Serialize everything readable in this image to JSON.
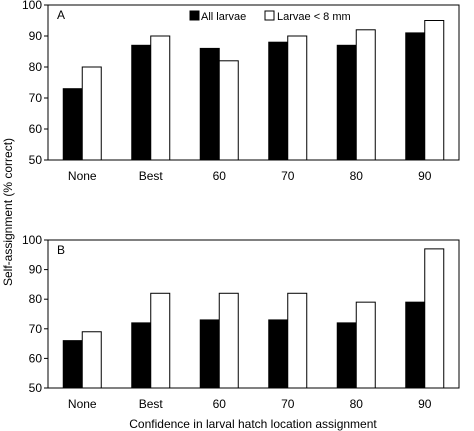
{
  "legend": {
    "series_all": "All larvae",
    "series_small": "Larvae < 8 mm"
  },
  "ylabel": "Self-assignment (% correct)",
  "xlabel": "Confidence in larval hatch location assignment",
  "chart_data": [
    {
      "panel": "A",
      "type": "bar",
      "categories": [
        "None",
        "Best",
        "60",
        "70",
        "80",
        "90"
      ],
      "series": [
        {
          "name": "All larvae",
          "color": "#000000",
          "values": [
            73,
            87,
            86,
            88,
            87,
            91
          ]
        },
        {
          "name": "Larvae < 8 mm",
          "color": "#ffffff",
          "values": [
            80,
            90,
            82,
            90,
            92,
            95
          ]
        }
      ],
      "ylim": [
        50,
        100
      ],
      "yticks": [
        50,
        60,
        70,
        80,
        90,
        100
      ],
      "legend_position": "top-center"
    },
    {
      "panel": "B",
      "type": "bar",
      "categories": [
        "None",
        "Best",
        "60",
        "70",
        "80",
        "90"
      ],
      "series": [
        {
          "name": "All larvae",
          "color": "#000000",
          "values": [
            66,
            72,
            73,
            73,
            72,
            79
          ]
        },
        {
          "name": "Larvae < 8 mm",
          "color": "#ffffff",
          "values": [
            69,
            82,
            82,
            82,
            79,
            97
          ]
        }
      ],
      "ylim": [
        50,
        100
      ],
      "yticks": [
        50,
        60,
        70,
        80,
        90,
        100
      ]
    }
  ]
}
